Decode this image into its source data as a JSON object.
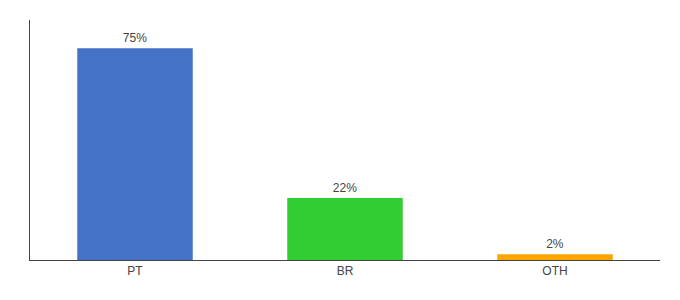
{
  "chart_data": {
    "type": "bar",
    "categories": [
      "PT",
      "BR",
      "OTH"
    ],
    "values": [
      75,
      22,
      2
    ],
    "value_labels": [
      "75%",
      "22%",
      "2%"
    ],
    "data_labels": true,
    "colors": [
      "#4472C4",
      "#32CD32",
      "#FFA500"
    ],
    "ylim": [
      0,
      85
    ],
    "tick_labels": "x",
    "grid": false
  }
}
